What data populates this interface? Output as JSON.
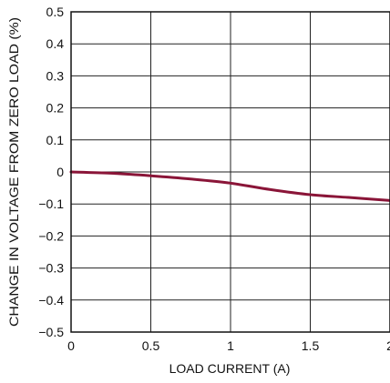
{
  "chart_data": {
    "type": "line",
    "title": "",
    "xlabel": "LOAD CURRENT (A)",
    "ylabel": "CHANGE IN VOLTAGE FROM ZERO LOAD (%)",
    "xlim": [
      0,
      2
    ],
    "ylim": [
      -0.5,
      0.5
    ],
    "grid": true,
    "x_ticks": [
      0,
      0.5,
      1,
      1.5,
      2
    ],
    "x_tick_labels": [
      "0",
      "0.5",
      "1",
      "1.5",
      "2"
    ],
    "y_ticks": [
      0.5,
      0.4,
      0.3,
      0.2,
      0.1,
      0,
      -0.1,
      -0.2,
      -0.3,
      -0.4,
      -0.5
    ],
    "y_tick_labels": [
      "0.5",
      "0.4",
      "0.3",
      "0.2",
      "0.1",
      "0",
      "−0.1",
      "−0.2",
      "−0.3",
      "−0.4",
      "−0.5"
    ],
    "series": [
      {
        "color": "#8a1538",
        "x": [
          0,
          0.25,
          0.5,
          0.75,
          1.0,
          1.25,
          1.5,
          1.75,
          2.0
        ],
        "y": [
          0,
          -0.004,
          -0.012,
          -0.022,
          -0.035,
          -0.055,
          -0.071,
          -0.08,
          -0.089
        ]
      }
    ]
  }
}
